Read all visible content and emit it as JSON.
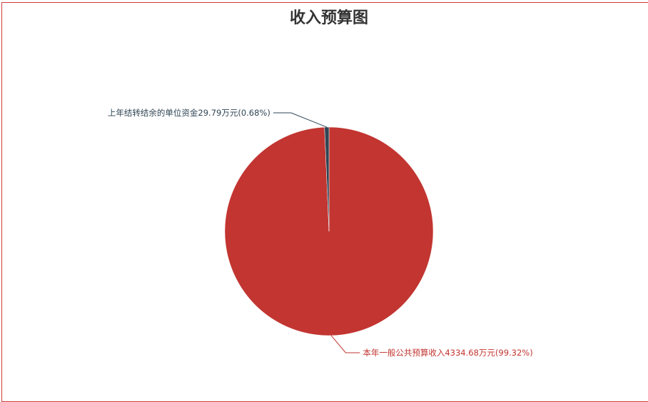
{
  "chart_data": {
    "type": "pie",
    "title": "收入预算图",
    "unit": "万元",
    "slices": [
      {
        "name": "本年一般公共预算收入",
        "value": 4334.68,
        "percent": 99.32,
        "label": "本年一般公共预算收入4334.68万元(99.32%)",
        "color": "#c23531"
      },
      {
        "name": "上年结转结余的单位资金",
        "value": 29.79,
        "percent": 0.68,
        "label": "上年结转结余的单位资金29.79万元(0.68%)",
        "color": "#2f4554"
      }
    ],
    "legend": "none"
  },
  "colors": {
    "frame_border": "#d23b3b",
    "title": "#333333"
  }
}
